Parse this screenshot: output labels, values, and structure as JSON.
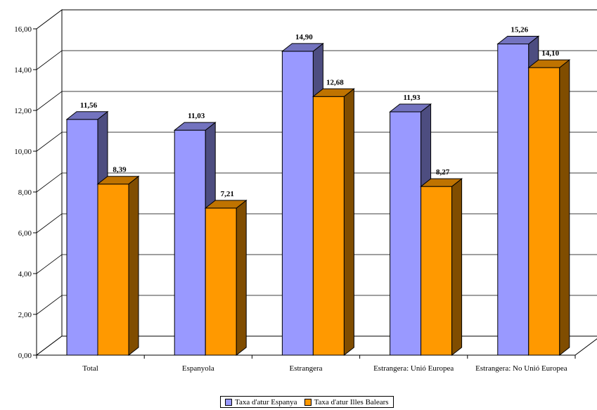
{
  "chart_data": {
    "type": "bar",
    "categories": [
      "Total",
      "Espanyola",
      "Estrangera",
      "Estrangera: Unió Europea",
      "Estrangera: No Unió Europea"
    ],
    "series": [
      {
        "name": "Taxa d'atur Espanya",
        "values": [
          11.56,
          11.03,
          14.9,
          11.93,
          15.26
        ],
        "labels": [
          "11,56",
          "11,03",
          "14,90",
          "11,93",
          "15,26"
        ],
        "color": "#9999ff"
      },
      {
        "name": "Taxa d'atur Illes Balears",
        "values": [
          8.39,
          7.21,
          12.68,
          8.27,
          14.1
        ],
        "labels": [
          "8,39",
          "7,21",
          "12,68",
          "8,27",
          "14,10"
        ],
        "color": "#ff9900"
      }
    ],
    "ylim": [
      0,
      16
    ],
    "yticks": [
      "0,00",
      "2,00",
      "4,00",
      "6,00",
      "8,00",
      "10,00",
      "12,00",
      "14,00",
      "16,00"
    ],
    "grid": true,
    "legend_position": "bottom"
  }
}
